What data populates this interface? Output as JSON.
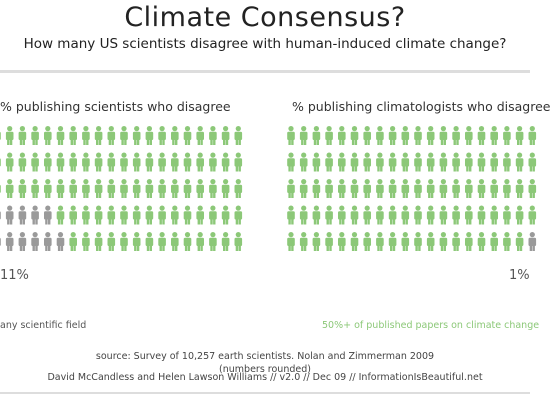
{
  "header": {
    "title": "Climate Consensus?",
    "subtitle": "How many US scientists disagree with human-induced climate change?"
  },
  "colors": {
    "agree": "#8cc878",
    "disagree": "#9a9a9a"
  },
  "chart_data": [
    {
      "type": "pictogram",
      "title": "% publishing scientists who disagree",
      "categories": [
        "disagree",
        "agree"
      ],
      "values": [
        11,
        89
      ],
      "value_label": "11%",
      "caption": "any scientific field"
    },
    {
      "type": "pictogram",
      "title": "% publishing climatologists who disagree",
      "categories": [
        "disagree",
        "agree"
      ],
      "values": [
        1,
        99
      ],
      "value_label": "1%",
      "caption": "50%+ of published papers on climate change"
    }
  ],
  "source": {
    "line1": "source: Survey of 10,257 earth scientists. Nolan and Zimmerman 2009",
    "line2": "(numbers rounded)"
  },
  "credit": "David McCandless and Helen Lawson Williams // v2.0 // Dec 09 // InformationIsBeautiful.net"
}
